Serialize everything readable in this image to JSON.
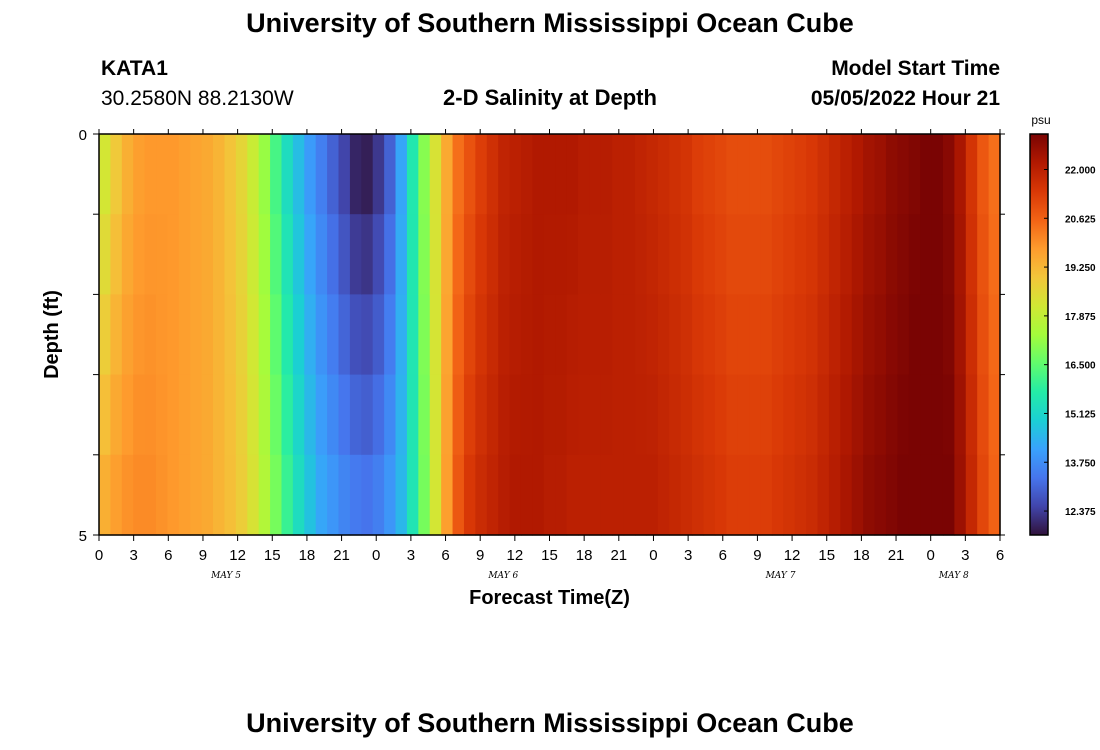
{
  "header": {
    "title": "University of Southern Mississippi Ocean Cube",
    "station_name": "KATA1",
    "station_coords": "30.2580N  88.2130W",
    "subtitle": "2-D Salinity at Depth",
    "start_label": "Model Start Time",
    "start_value": "05/05/2022 Hour 21"
  },
  "footer": {
    "title": "University of Southern Mississippi Ocean Cube"
  },
  "chart_data": {
    "type": "heatmap",
    "title": "2-D Salinity at Depth",
    "xlabel": "Forecast Time(Z)",
    "ylabel": "Depth (ft)",
    "ylim": [
      0,
      5
    ],
    "y_ticks": [
      "0",
      "5"
    ],
    "x_hours_range": [
      0,
      78
    ],
    "x_tick_labels": [
      "0",
      "3",
      "6",
      "9",
      "12",
      "15",
      "18",
      "21",
      "0",
      "3",
      "6",
      "9",
      "12",
      "15",
      "18",
      "21",
      "0",
      "3",
      "6",
      "9",
      "12",
      "15",
      "18",
      "21",
      "0",
      "3",
      "6"
    ],
    "date_labels": [
      {
        "label": "MAY 5",
        "hour": 11
      },
      {
        "label": "MAY 6",
        "hour": 35
      },
      {
        "label": "MAY 7",
        "hour": 59
      },
      {
        "label": "MAY 8",
        "hour": 74
      }
    ],
    "colorbar": {
      "unit": "psu",
      "min": 11.7,
      "max": 23.0,
      "ticks": [
        "22.000",
        "20.625",
        "19.250",
        "17.875",
        "16.500",
        "15.125",
        "13.750",
        "12.375"
      ],
      "colors": [
        "#30123b",
        "#4145ab",
        "#4675ed",
        "#39a2fc",
        "#1bcfd4",
        "#24eca6",
        "#61fc6c",
        "#a4fc3b",
        "#d1e834",
        "#f3c63a",
        "#fe9b2d",
        "#f36315",
        "#d93806",
        "#b11901",
        "#7a0403"
      ]
    },
    "salinity_surface": [
      [
        0,
        18.2
      ],
      [
        1,
        18.9
      ],
      [
        2,
        19.4
      ],
      [
        3,
        19.7
      ],
      [
        4,
        19.8
      ],
      [
        5,
        19.8
      ],
      [
        6,
        19.8
      ],
      [
        7,
        19.7
      ],
      [
        8,
        19.6
      ],
      [
        9,
        19.5
      ],
      [
        10,
        19.3
      ],
      [
        11,
        19.0
      ],
      [
        12,
        18.6
      ],
      [
        13,
        18.0
      ],
      [
        14,
        17.2
      ],
      [
        15,
        16.2
      ],
      [
        16,
        15.3
      ],
      [
        17,
        14.6
      ],
      [
        18,
        14.0
      ],
      [
        19,
        13.5
      ],
      [
        20,
        13.0
      ],
      [
        21,
        12.5
      ],
      [
        22,
        12.0
      ],
      [
        23,
        11.9
      ],
      [
        24,
        12.3
      ],
      [
        25,
        13.0
      ],
      [
        26,
        14.2
      ],
      [
        27,
        15.6
      ],
      [
        28,
        17.0
      ],
      [
        29,
        18.3
      ],
      [
        30,
        19.5
      ],
      [
        31,
        20.4
      ],
      [
        32,
        20.9
      ],
      [
        33,
        21.3
      ],
      [
        34,
        21.6
      ],
      [
        35,
        21.9
      ],
      [
        36,
        22.0
      ],
      [
        37,
        22.1
      ],
      [
        38,
        22.2
      ],
      [
        39,
        22.2
      ],
      [
        40,
        22.2
      ],
      [
        41,
        22.2
      ],
      [
        42,
        22.1
      ],
      [
        43,
        22.1
      ],
      [
        44,
        22.1
      ],
      [
        45,
        22.0
      ],
      [
        46,
        22.0
      ],
      [
        47,
        21.9
      ],
      [
        48,
        21.8
      ],
      [
        49,
        21.7
      ],
      [
        50,
        21.6
      ],
      [
        51,
        21.5
      ],
      [
        52,
        21.3
      ],
      [
        53,
        21.2
      ],
      [
        54,
        21.1
      ],
      [
        55,
        21.0
      ],
      [
        56,
        21.0
      ],
      [
        57,
        21.0
      ],
      [
        58,
        21.0
      ],
      [
        59,
        21.1
      ],
      [
        60,
        21.2
      ],
      [
        61,
        21.3
      ],
      [
        62,
        21.4
      ],
      [
        63,
        21.6
      ],
      [
        64,
        21.8
      ],
      [
        65,
        22.0
      ],
      [
        66,
        22.2
      ],
      [
        67,
        22.4
      ],
      [
        68,
        22.5
      ],
      [
        69,
        22.7
      ],
      [
        70,
        22.8
      ],
      [
        71,
        22.9
      ],
      [
        72,
        23.0
      ],
      [
        73,
        23.0
      ],
      [
        74,
        22.8
      ],
      [
        75,
        22.3
      ],
      [
        76,
        21.5
      ],
      [
        77,
        20.8
      ],
      [
        78,
        20.4
      ]
    ],
    "salinity_bottom": [
      [
        0,
        19.4
      ],
      [
        1,
        19.7
      ],
      [
        2,
        19.9
      ],
      [
        3,
        20.0
      ],
      [
        4,
        20.0
      ],
      [
        5,
        19.9
      ],
      [
        6,
        19.8
      ],
      [
        7,
        19.7
      ],
      [
        8,
        19.6
      ],
      [
        9,
        19.5
      ],
      [
        10,
        19.3
      ],
      [
        11,
        19.1
      ],
      [
        12,
        18.8
      ],
      [
        13,
        18.3
      ],
      [
        14,
        17.6
      ],
      [
        15,
        16.8
      ],
      [
        16,
        16.0
      ],
      [
        17,
        15.3
      ],
      [
        18,
        14.7
      ],
      [
        19,
        14.2
      ],
      [
        20,
        13.9
      ],
      [
        21,
        13.6
      ],
      [
        22,
        13.4
      ],
      [
        23,
        13.3
      ],
      [
        24,
        13.5
      ],
      [
        25,
        13.9
      ],
      [
        26,
        14.5
      ],
      [
        27,
        15.5
      ],
      [
        28,
        16.8
      ],
      [
        29,
        18.2
      ],
      [
        30,
        19.7
      ],
      [
        31,
        20.8
      ],
      [
        32,
        21.4
      ],
      [
        33,
        21.7
      ],
      [
        34,
        21.9
      ],
      [
        35,
        22.1
      ],
      [
        36,
        22.2
      ],
      [
        37,
        22.2
      ],
      [
        38,
        22.2
      ],
      [
        39,
        22.1
      ],
      [
        40,
        22.1
      ],
      [
        41,
        22.0
      ],
      [
        42,
        22.0
      ],
      [
        43,
        22.0
      ],
      [
        44,
        22.0
      ],
      [
        45,
        22.0
      ],
      [
        46,
        22.0
      ],
      [
        47,
        22.0
      ],
      [
        48,
        22.0
      ],
      [
        49,
        21.9
      ],
      [
        50,
        21.8
      ],
      [
        51,
        21.7
      ],
      [
        52,
        21.6
      ],
      [
        53,
        21.5
      ],
      [
        54,
        21.4
      ],
      [
        55,
        21.3
      ],
      [
        56,
        21.3
      ],
      [
        57,
        21.3
      ],
      [
        58,
        21.3
      ],
      [
        59,
        21.4
      ],
      [
        60,
        21.5
      ],
      [
        61,
        21.6
      ],
      [
        62,
        21.7
      ],
      [
        63,
        21.9
      ],
      [
        64,
        22.1
      ],
      [
        65,
        22.3
      ],
      [
        66,
        22.5
      ],
      [
        67,
        22.7
      ],
      [
        68,
        22.8
      ],
      [
        69,
        22.9
      ],
      [
        70,
        23.0
      ],
      [
        71,
        23.1
      ],
      [
        72,
        23.2
      ],
      [
        73,
        23.2
      ],
      [
        74,
        23.0
      ],
      [
        75,
        22.5
      ],
      [
        76,
        21.8
      ],
      [
        77,
        21.1
      ],
      [
        78,
        20.6
      ]
    ]
  }
}
